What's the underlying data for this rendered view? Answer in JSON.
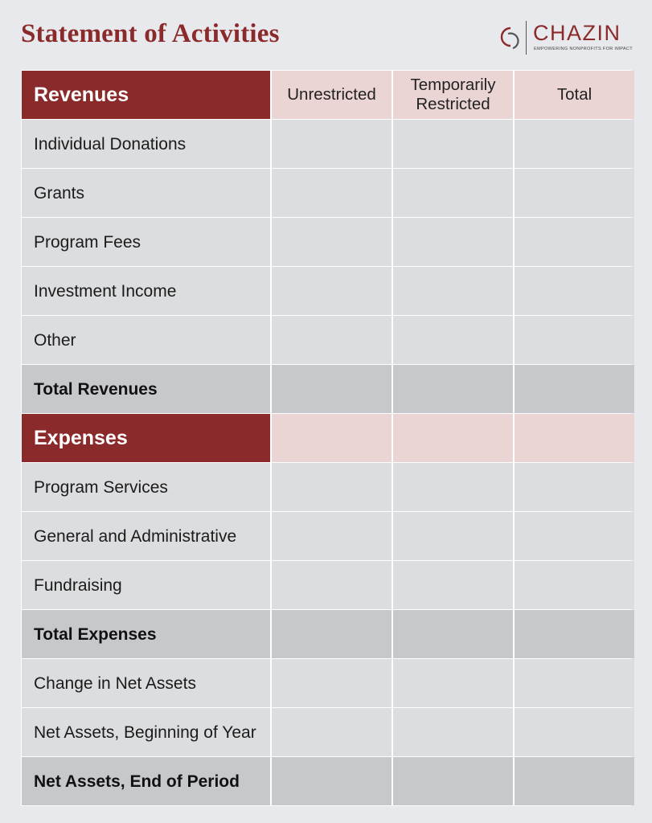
{
  "title": "Statement of Activities",
  "logo": {
    "brand": "CHAZIN",
    "tagline": "EMPOWERING NONPROFITS FOR IMPACT",
    "icon": "chazin-cs-monogram-icon",
    "color": "#8b2a2a"
  },
  "colors": {
    "section_header": "#8b2a2a",
    "column_header": "#ebd5d4",
    "row": "#dcdddf",
    "total_row": "#c6c8cb",
    "background": "#e8e9ec"
  },
  "columns": [
    "Unrestricted",
    "Temporarily Restricted",
    "Total"
  ],
  "revenues": {
    "header": "Revenues",
    "items": [
      "Individual Donations",
      "Grants",
      "Program Fees",
      "Investment Income",
      "Other"
    ],
    "total_label": "Total Revenues"
  },
  "expenses": {
    "header": "Expenses",
    "items": [
      "Program Services",
      "General and Administrative",
      "Fundraising"
    ],
    "total_label": "Total Expenses"
  },
  "net_assets": {
    "change": "Change in Net Assets",
    "beginning": "Net Assets, Beginning of Year",
    "end": "Net Assets, End of Period"
  }
}
